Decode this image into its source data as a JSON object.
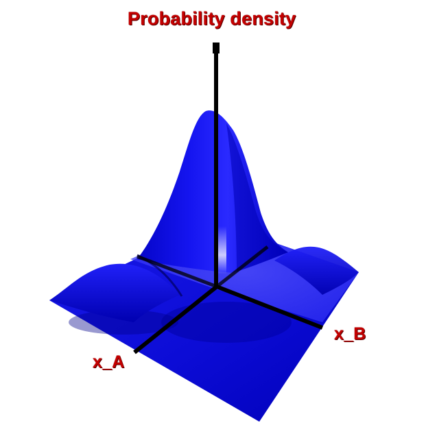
{
  "labels": {
    "z_axis": "Probability density",
    "x_axis": "x_B",
    "y_axis": "x_A"
  },
  "colors": {
    "surface": "#1010e0",
    "surface_dark": "#00009a",
    "surface_light": "#4a4aff",
    "axis": "#000000",
    "label": "#c40000"
  }
}
